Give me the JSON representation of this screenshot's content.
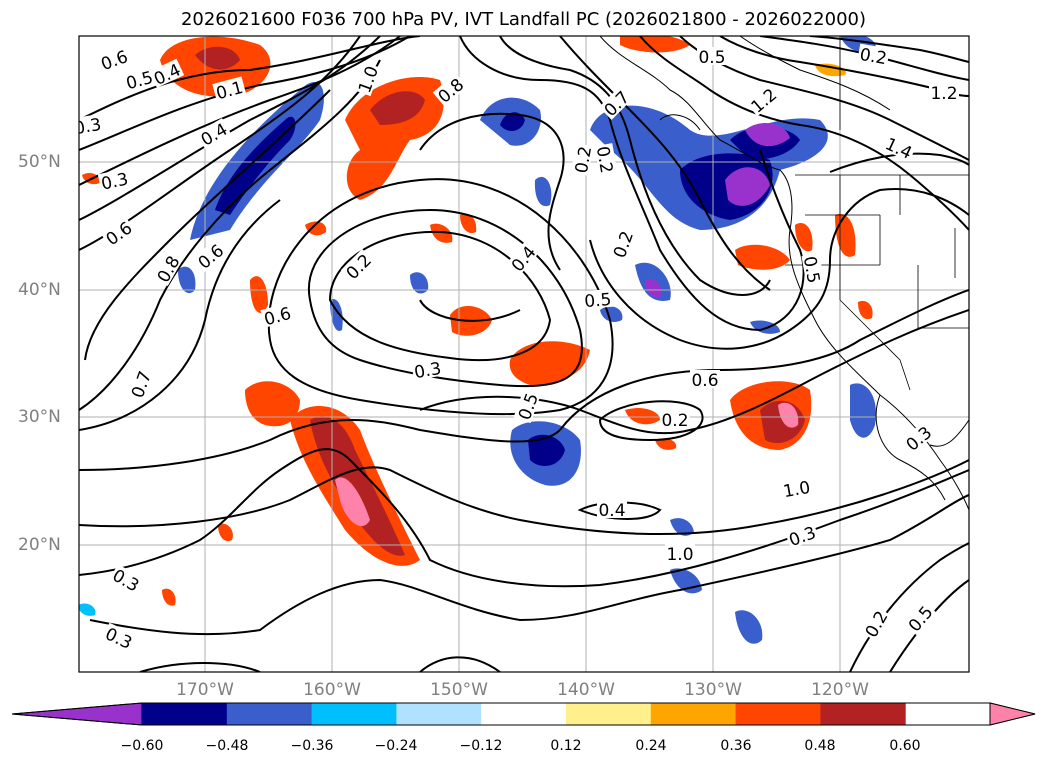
{
  "title": "2026021600 F036 700 hPa PV, IVT Landfall PC (2026021800 - 2026022000)",
  "map": {
    "lat_ticks": [
      "50°N",
      "40°N",
      "30°N",
      "20°N"
    ],
    "lon_ticks": [
      "170°W",
      "160°W",
      "150°W",
      "140°W",
      "130°W",
      "120°W"
    ],
    "contour_labels": [
      "0.6",
      "0.5",
      "0.4",
      "0.2",
      "0.3",
      "0.4",
      "0.3",
      "0.6",
      "0.8",
      "0.6",
      "0.7",
      "1.0",
      "0.8",
      "0.2",
      "0.4",
      "0.5",
      "0.3",
      "0.5",
      "0.6",
      "0.3",
      "0.2",
      "0.3",
      "0.2",
      "0.1",
      "0.2",
      "0.7",
      "0.5",
      "1.2",
      "1.4",
      "1.2",
      "1.0",
      "0.5",
      "0.6",
      "1.0",
      "0.3",
      "0.3",
      "0.2",
      "0.5",
      "0.2",
      "0.4",
      "0.2",
      "0.3",
      "0.6"
    ]
  },
  "colorbar": {
    "colors": [
      "#9932cc",
      "#00008b",
      "#3a5fcd",
      "#00bfff",
      "#b0e2ff",
      "#ffffff",
      "#fff08c",
      "#ffa500",
      "#ff4500",
      "#b22222",
      "#ff82ab"
    ],
    "labels": [
      "−0.60",
      "−0.48",
      "−0.36",
      "−0.24",
      "−0.12",
      "0.12",
      "0.24",
      "0.36",
      "0.48",
      "0.60"
    ]
  },
  "colors": {
    "grid": "#b0b0b0",
    "contour": "#000000",
    "coast": "#000000"
  }
}
